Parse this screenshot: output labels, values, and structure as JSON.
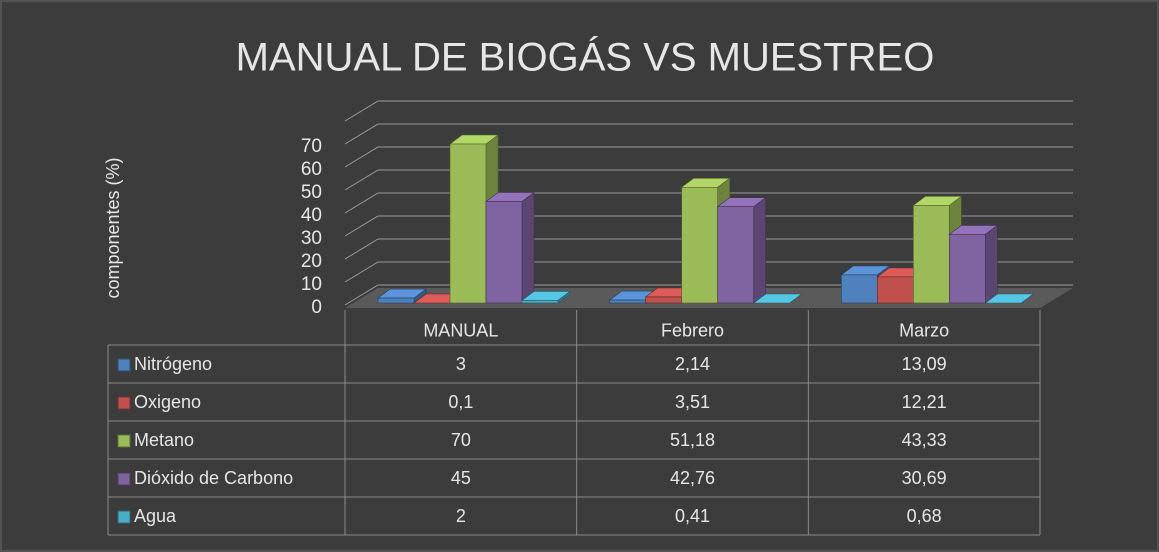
{
  "chart_data": {
    "type": "bar",
    "title": "MANUAL DE BIOGÁS  VS MUESTREO",
    "y_label": "componentes  (%)",
    "categories": [
      "MANUAL",
      "Febrero",
      "Marzo"
    ],
    "series": [
      {
        "name": "Nitrógeno",
        "color": "#4f81bd",
        "values": [
          3,
          2.14,
          13.09
        ],
        "value_labels": [
          "3",
          "2,14",
          "13,09"
        ]
      },
      {
        "name": "Oxigeno",
        "color": "#c0504d",
        "values": [
          0.1,
          3.51,
          12.21
        ],
        "value_labels": [
          "0,1",
          "3,51",
          "12,21"
        ]
      },
      {
        "name": "Metano",
        "color": "#9bbb59",
        "values": [
          70,
          51.18,
          43.33
        ],
        "value_labels": [
          "70",
          "51,18",
          "43,33"
        ]
      },
      {
        "name": "Dióxido de Carbono",
        "color": "#8064a2",
        "values": [
          45,
          42.76,
          30.69
        ],
        "value_labels": [
          "45",
          "42,76",
          "30,69"
        ]
      },
      {
        "name": "Agua",
        "color": "#4bacc6",
        "values": [
          2,
          0.41,
          0.68
        ],
        "value_labels": [
          "2",
          "0,41",
          "0,68"
        ]
      }
    ],
    "ylim": [
      0,
      80
    ],
    "yticks": [
      0,
      10,
      20,
      30,
      40,
      50,
      60,
      70
    ],
    "grid": true
  }
}
